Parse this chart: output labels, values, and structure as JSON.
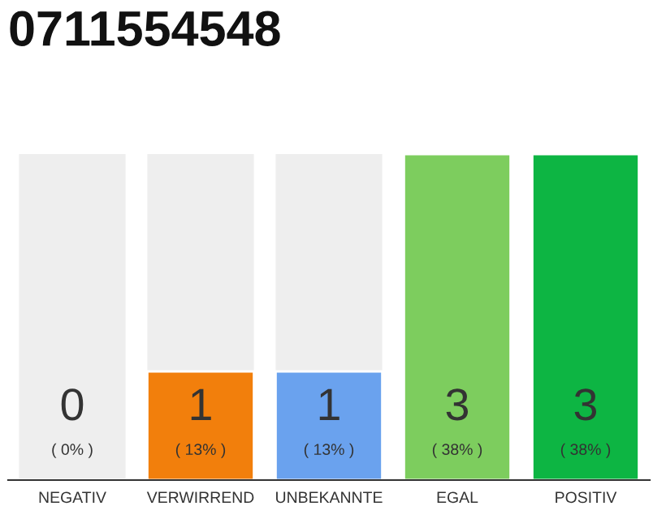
{
  "chart_data": {
    "type": "bar",
    "title": "0711554548",
    "categories": [
      "NEGATIV",
      "VERWIRREND",
      "UNBEKANNTE",
      "EGAL",
      "POSITIV"
    ],
    "values": [
      0,
      1,
      1,
      3,
      3
    ],
    "colors": [
      "#ffffff",
      "#f27f0c",
      "#6aa2ee",
      "#7dcd5e",
      "#0db543"
    ],
    "ylim": [
      0,
      3
    ],
    "data_labels": true,
    "annotations": [
      "( 0% )",
      "( 13% )",
      "( 13% )",
      "( 38% )",
      "( 38% )"
    ]
  }
}
